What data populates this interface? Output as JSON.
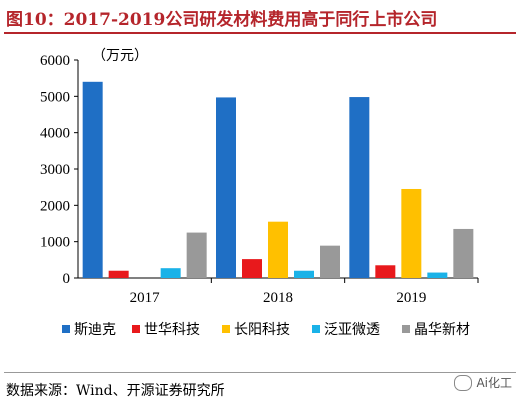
{
  "header": {
    "title": "图10：2017-2019公司研发材料费用高于同行上市公司"
  },
  "footer": {
    "source": "数据来源：Wind、开源证券研究所",
    "badge": "Ai化工"
  },
  "chart_data": {
    "type": "bar",
    "title": "",
    "unit": "（万元）",
    "categories": [
      "2017",
      "2018",
      "2019"
    ],
    "ylim": [
      0,
      6000
    ],
    "yticks": [
      0,
      1000,
      2000,
      3000,
      4000,
      5000,
      6000
    ],
    "legend_position": "bottom",
    "series": [
      {
        "name": "斯迪克",
        "color": "#1f6fc5",
        "values": [
          5400,
          4970,
          4980
        ]
      },
      {
        "name": "世华科技",
        "color": "#e8191c",
        "values": [
          200,
          520,
          350
        ]
      },
      {
        "name": "长阳科技",
        "color": "#ffc000",
        "values": [
          0,
          1550,
          2450
        ]
      },
      {
        "name": "泛亚微透",
        "color": "#1ab2e8",
        "values": [
          270,
          200,
          150
        ]
      },
      {
        "name": "晶华新材",
        "color": "#999999",
        "values": [
          1250,
          890,
          1350
        ]
      }
    ]
  }
}
